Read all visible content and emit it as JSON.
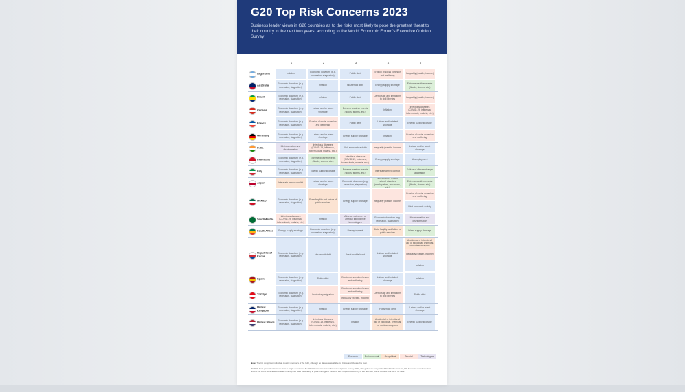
{
  "title": "G20 Top Risk Concerns 2023",
  "subtitle": "Business leader views in G20 countries as to the risks most likely to pose the greatest threat to their country in the next two years, according to the World Economic Forum's Executive Opinion Survey",
  "colors": {
    "header": "#1f3a7a",
    "Economic": "#dde8f7",
    "Environmental": "#dcefd9",
    "Geopolitical": "#fbe3d2",
    "Societal": "#fde5df",
    "Technological": "#e7e3f1"
  },
  "chart_data": {
    "type": "table",
    "columns": [
      "1",
      "2",
      "3",
      "4",
      "5"
    ],
    "legend": [
      "Economic",
      "Environmental",
      "Geopolitical",
      "Societal",
      "Technological"
    ],
    "rows": [
      {
        "country": "Argentina",
        "flag": [
          "#74acdf",
          "#ffffff",
          "#74acdf"
        ],
        "cells": [
          {
            "t": "Inflation",
            "c": "Economic"
          },
          {
            "t": "Economic downturn (e.g. recession, stagnation)",
            "c": "Economic"
          },
          {
            "t": "Public debt",
            "c": "Economic"
          },
          {
            "t": "Erosion of social cohesion and wellbeing",
            "c": "Societal"
          },
          {
            "t": "Inequality (wealth, income)",
            "c": "Societal"
          }
        ]
      },
      {
        "country": "Australia",
        "flag": [
          "#012169",
          "#012169",
          "#c8102e"
        ],
        "cells": [
          {
            "t": "Economic downturn (e.g. recession, stagnation)",
            "c": "Economic"
          },
          {
            "t": "Inflation",
            "c": "Economic"
          },
          {
            "t": "Household debt",
            "c": "Economic"
          },
          {
            "t": "Energy supply shortage",
            "c": "Economic"
          },
          {
            "t": "Extreme weather events (floods, storms, etc.)",
            "c": "Environmental"
          }
        ]
      },
      {
        "country": "Brazil",
        "flag": [
          "#009c3b",
          "#ffdf00",
          "#002776"
        ],
        "cells": [
          {
            "t": "Economic downturn (e.g. recession, stagnation)",
            "c": "Economic"
          },
          {
            "t": "Inflation",
            "c": "Economic"
          },
          {
            "t": "Public debt",
            "c": "Economic"
          },
          {
            "t": "Censorship and limitations to civil liberties",
            "c": "Societal"
          },
          {
            "t": "Inequality (wealth, income)",
            "c": "Societal"
          }
        ]
      },
      {
        "country": "Canada",
        "flag": [
          "#d52b1e",
          "#ffffff",
          "#d52b1e"
        ],
        "cells": [
          {
            "t": "Economic downturn (e.g. recession, stagnation)",
            "c": "Economic"
          },
          {
            "t": "Labour and/or talent shortage",
            "c": "Economic"
          },
          {
            "t": "Extreme weather events (floods, storms, etc.)",
            "c": "Environmental"
          },
          {
            "t": "Inflation",
            "c": "Economic"
          },
          {
            "t": "Infectious diseases (COVID-19, influenza, tuberculosis, malaria, etc.)",
            "c": "Societal"
          }
        ]
      },
      {
        "country": "France",
        "flag": [
          "#0055a4",
          "#ffffff",
          "#ef4135"
        ],
        "cells": [
          {
            "t": "Economic downturn (e.g. recession, stagnation)",
            "c": "Economic"
          },
          {
            "t": "Erosion of social cohesion and wellbeing",
            "c": "Societal"
          },
          {
            "t": "Public debt",
            "c": "Economic"
          },
          {
            "t": "Labour and/or talent shortage",
            "c": "Economic"
          },
          {
            "t": "Energy supply shortage",
            "c": "Economic"
          }
        ]
      },
      {
        "country": "Germany",
        "flag": [
          "#000000",
          "#dd0000",
          "#ffce00"
        ],
        "cells": [
          {
            "t": "Economic downturn (e.g. recession, stagnation)",
            "c": "Economic"
          },
          {
            "t": "Labour and/or talent shortage",
            "c": "Economic"
          },
          {
            "t": "Energy supply shortage",
            "c": "Economic"
          },
          {
            "t": "Inflation",
            "c": "Economic"
          },
          {
            "t": "Erosion of social cohesion and wellbeing",
            "c": "Societal"
          }
        ]
      },
      {
        "country": "India",
        "flag": [
          "#ff9933",
          "#ffffff",
          "#138808"
        ],
        "cells": [
          {
            "t": "Misinformation and disinformation",
            "c": "Technological"
          },
          {
            "t": "Infectious diseases (COVID-19, influenza, tuberculosis, malaria, etc.)",
            "c": "Societal"
          },
          {
            "t": "Illicit economic activity",
            "c": "Economic"
          },
          {
            "t": "Inequality (wealth, income)",
            "c": "Societal"
          },
          {
            "t": "Labour and/or talent shortage",
            "c": "Economic"
          }
        ]
      },
      {
        "country": "Indonesia",
        "flag": [
          "#ce1126",
          "#ce1126",
          "#ffffff"
        ],
        "cells": [
          {
            "t": "Economic downturn (e.g. recession, stagnation)",
            "c": "Economic"
          },
          {
            "t": "Extreme weather events (floods, storms, etc.)",
            "c": "Environmental"
          },
          {
            "t": "Infectious diseases (COVID-19, influenza, tuberculosis, malaria, etc.)",
            "c": "Societal"
          },
          {
            "t": "Energy supply shortage",
            "c": "Economic"
          },
          {
            "t": "Unemployment",
            "c": "Economic"
          }
        ]
      },
      {
        "country": "Italy",
        "flag": [
          "#009246",
          "#ffffff",
          "#ce2b37"
        ],
        "cells": [
          {
            "t": "Economic downturn (e.g. recession, stagnation)",
            "c": "Economic"
          },
          {
            "t": "Energy supply shortage",
            "c": "Economic"
          },
          {
            "t": "Extreme weather events (floods, storms, etc.)",
            "c": "Environmental"
          },
          {
            "t": "Interstate armed conflict",
            "c": "Geopolitical"
          },
          {
            "t": "Failure of climate change adaptation",
            "c": "Environmental"
          }
        ]
      },
      {
        "country": "Japan",
        "flag": [
          "#ffffff",
          "#bc002d",
          "#ffffff"
        ],
        "cells": [
          {
            "t": "Interstate armed conflict",
            "c": "Geopolitical"
          },
          {
            "t": "Labour and/or talent shortage",
            "c": "Economic"
          },
          {
            "t": "Economic downturn (e.g. recession, stagnation)",
            "c": "Economic"
          },
          {
            "t": "Non-weather related natural disasters (earthquakes, volcanoes, etc.)",
            "c": "Environmental"
          },
          {
            "t": "Extreme weather events (floods, storms, etc.)",
            "c": "Environmental"
          }
        ]
      },
      {
        "country": "Mexico",
        "flag": [
          "#006847",
          "#ffffff",
          "#ce1126"
        ],
        "cells": [
          {
            "t": "Economic downturn (e.g. recession, stagnation)",
            "c": "Economic"
          },
          {
            "t": "State fragility and failure of public services",
            "c": "Geopolitical"
          },
          {
            "t": "Energy supply shortage",
            "c": "Economic"
          },
          {
            "t": "Inequality (wealth, income)",
            "c": "Societal"
          },
          {
            "t": "Erosion of social cohesion and wellbeing",
            "c": "Societal",
            "t2": "Illicit economic activity",
            "c2": "Economic"
          }
        ]
      },
      {
        "country": "Saudi Arabia",
        "flag": [
          "#006c35",
          "#006c35",
          "#006c35"
        ],
        "cells": [
          {
            "t": "Infectious diseases (COVID-19, influenza, tuberculosis, malaria, etc.)",
            "c": "Societal"
          },
          {
            "t": "Inflation",
            "c": "Economic"
          },
          {
            "t": "Adverse outcomes of artificial intelligence technologies",
            "c": "Technological"
          },
          {
            "t": "Economic downturn (e.g. recession, stagnation)",
            "c": "Economic"
          },
          {
            "t": "Misinformation and disinformation",
            "c": "Technological"
          }
        ]
      },
      {
        "country": "South Africa",
        "flag": [
          "#007a4d",
          "#ffb612",
          "#de3831"
        ],
        "cells": [
          {
            "t": "Energy supply shortage",
            "c": "Economic"
          },
          {
            "t": "Economic downturn (e.g. recession, stagnation)",
            "c": "Economic"
          },
          {
            "t": "Unemployment",
            "c": "Economic"
          },
          {
            "t": "State fragility and failure of public services",
            "c": "Geopolitical"
          },
          {
            "t": "Water supply shortage",
            "c": "Environmental"
          }
        ]
      },
      {
        "country": "Republic of Korea",
        "flag": [
          "#ffffff",
          "#cd2e3a",
          "#0047a0"
        ],
        "cells": [
          {
            "t": "Economic downturn (e.g. recession, stagnation)",
            "c": "Economic"
          },
          {
            "t": "Household debt",
            "c": "Economic"
          },
          {
            "t": "Asset bubble burst",
            "c": "Economic"
          },
          {
            "t": "Labour and/or talent shortage",
            "c": "Economic"
          },
          {
            "t": "Accidental or intentional use of biological, chemical, or nuclear weapons",
            "c": "Geopolitical",
            "t2": "Inequality (wealth, income)",
            "c2": "Societal",
            "t3": "Inflation",
            "c3": "Economic"
          }
        ]
      },
      {
        "country": "Spain",
        "flag": [
          "#aa151b",
          "#f1bf00",
          "#aa151b"
        ],
        "cells": [
          {
            "t": "Economic downturn (e.g. recession, stagnation)",
            "c": "Economic"
          },
          {
            "t": "Public debt",
            "c": "Economic"
          },
          {
            "t": "Erosion of social cohesion and wellbeing",
            "c": "Societal"
          },
          {
            "t": "Labour and/or talent shortage",
            "c": "Economic"
          },
          {
            "t": "Inflation",
            "c": "Economic"
          }
        ]
      },
      {
        "country": "Türkiye",
        "flag": [
          "#e30a17",
          "#ffffff",
          "#e30a17"
        ],
        "cells": [
          {
            "t": "Economic downturn (e.g. recession, stagnation)",
            "c": "Economic"
          },
          {
            "t": "Involuntary migration",
            "c": "Societal"
          },
          {
            "t": "Erosion of social cohesion and wellbeing",
            "c": "Societal",
            "t2": "Inequality (wealth, income)",
            "c2": "Societal"
          },
          {
            "t": "Censorship and limitations to civil liberties",
            "c": "Societal"
          },
          {
            "t": "Public debt",
            "c": "Economic"
          }
        ]
      },
      {
        "country": "United Kingdom",
        "flag": [
          "#012169",
          "#ffffff",
          "#c8102e"
        ],
        "cells": [
          {
            "t": "Economic downturn (e.g. recession, stagnation)",
            "c": "Economic"
          },
          {
            "t": "Inflation",
            "c": "Economic"
          },
          {
            "t": "Energy supply shortage",
            "c": "Economic"
          },
          {
            "t": "Household debt",
            "c": "Economic"
          },
          {
            "t": "Labour and/or talent shortage",
            "c": "Economic"
          }
        ]
      },
      {
        "country": "United States",
        "flag": [
          "#b22234",
          "#ffffff",
          "#3c3b6e"
        ],
        "cells": [
          {
            "t": "Economic downturn (e.g. recession, stagnation)",
            "c": "Economic"
          },
          {
            "t": "Infectious diseases (COVID-19, influenza, tuberculosis, malaria, etc.)",
            "c": "Societal"
          },
          {
            "t": "Inflation",
            "c": "Economic"
          },
          {
            "t": "Accidental or intentional use of biological, chemical, or nuclear weapons",
            "c": "Geopolitical"
          },
          {
            "t": "Energy supply shortage",
            "c": "Economic"
          }
        ]
      }
    ]
  },
  "note_label": "Note:",
  "note_text": "The list comprises individual country members of the G20, although no data was available for China and Russia this year.",
  "source_label": "Source:",
  "source_text": "Data presented here are from a single question in the World Economic Forum Executive Opinion Survey 2023, with global an analysis by Marsh McLennan. 11,000 business executives from around the world were asked to select the top five risks most likely to pose the biggest threat to their respective country in the next two years, out of a total list of 35 risks."
}
